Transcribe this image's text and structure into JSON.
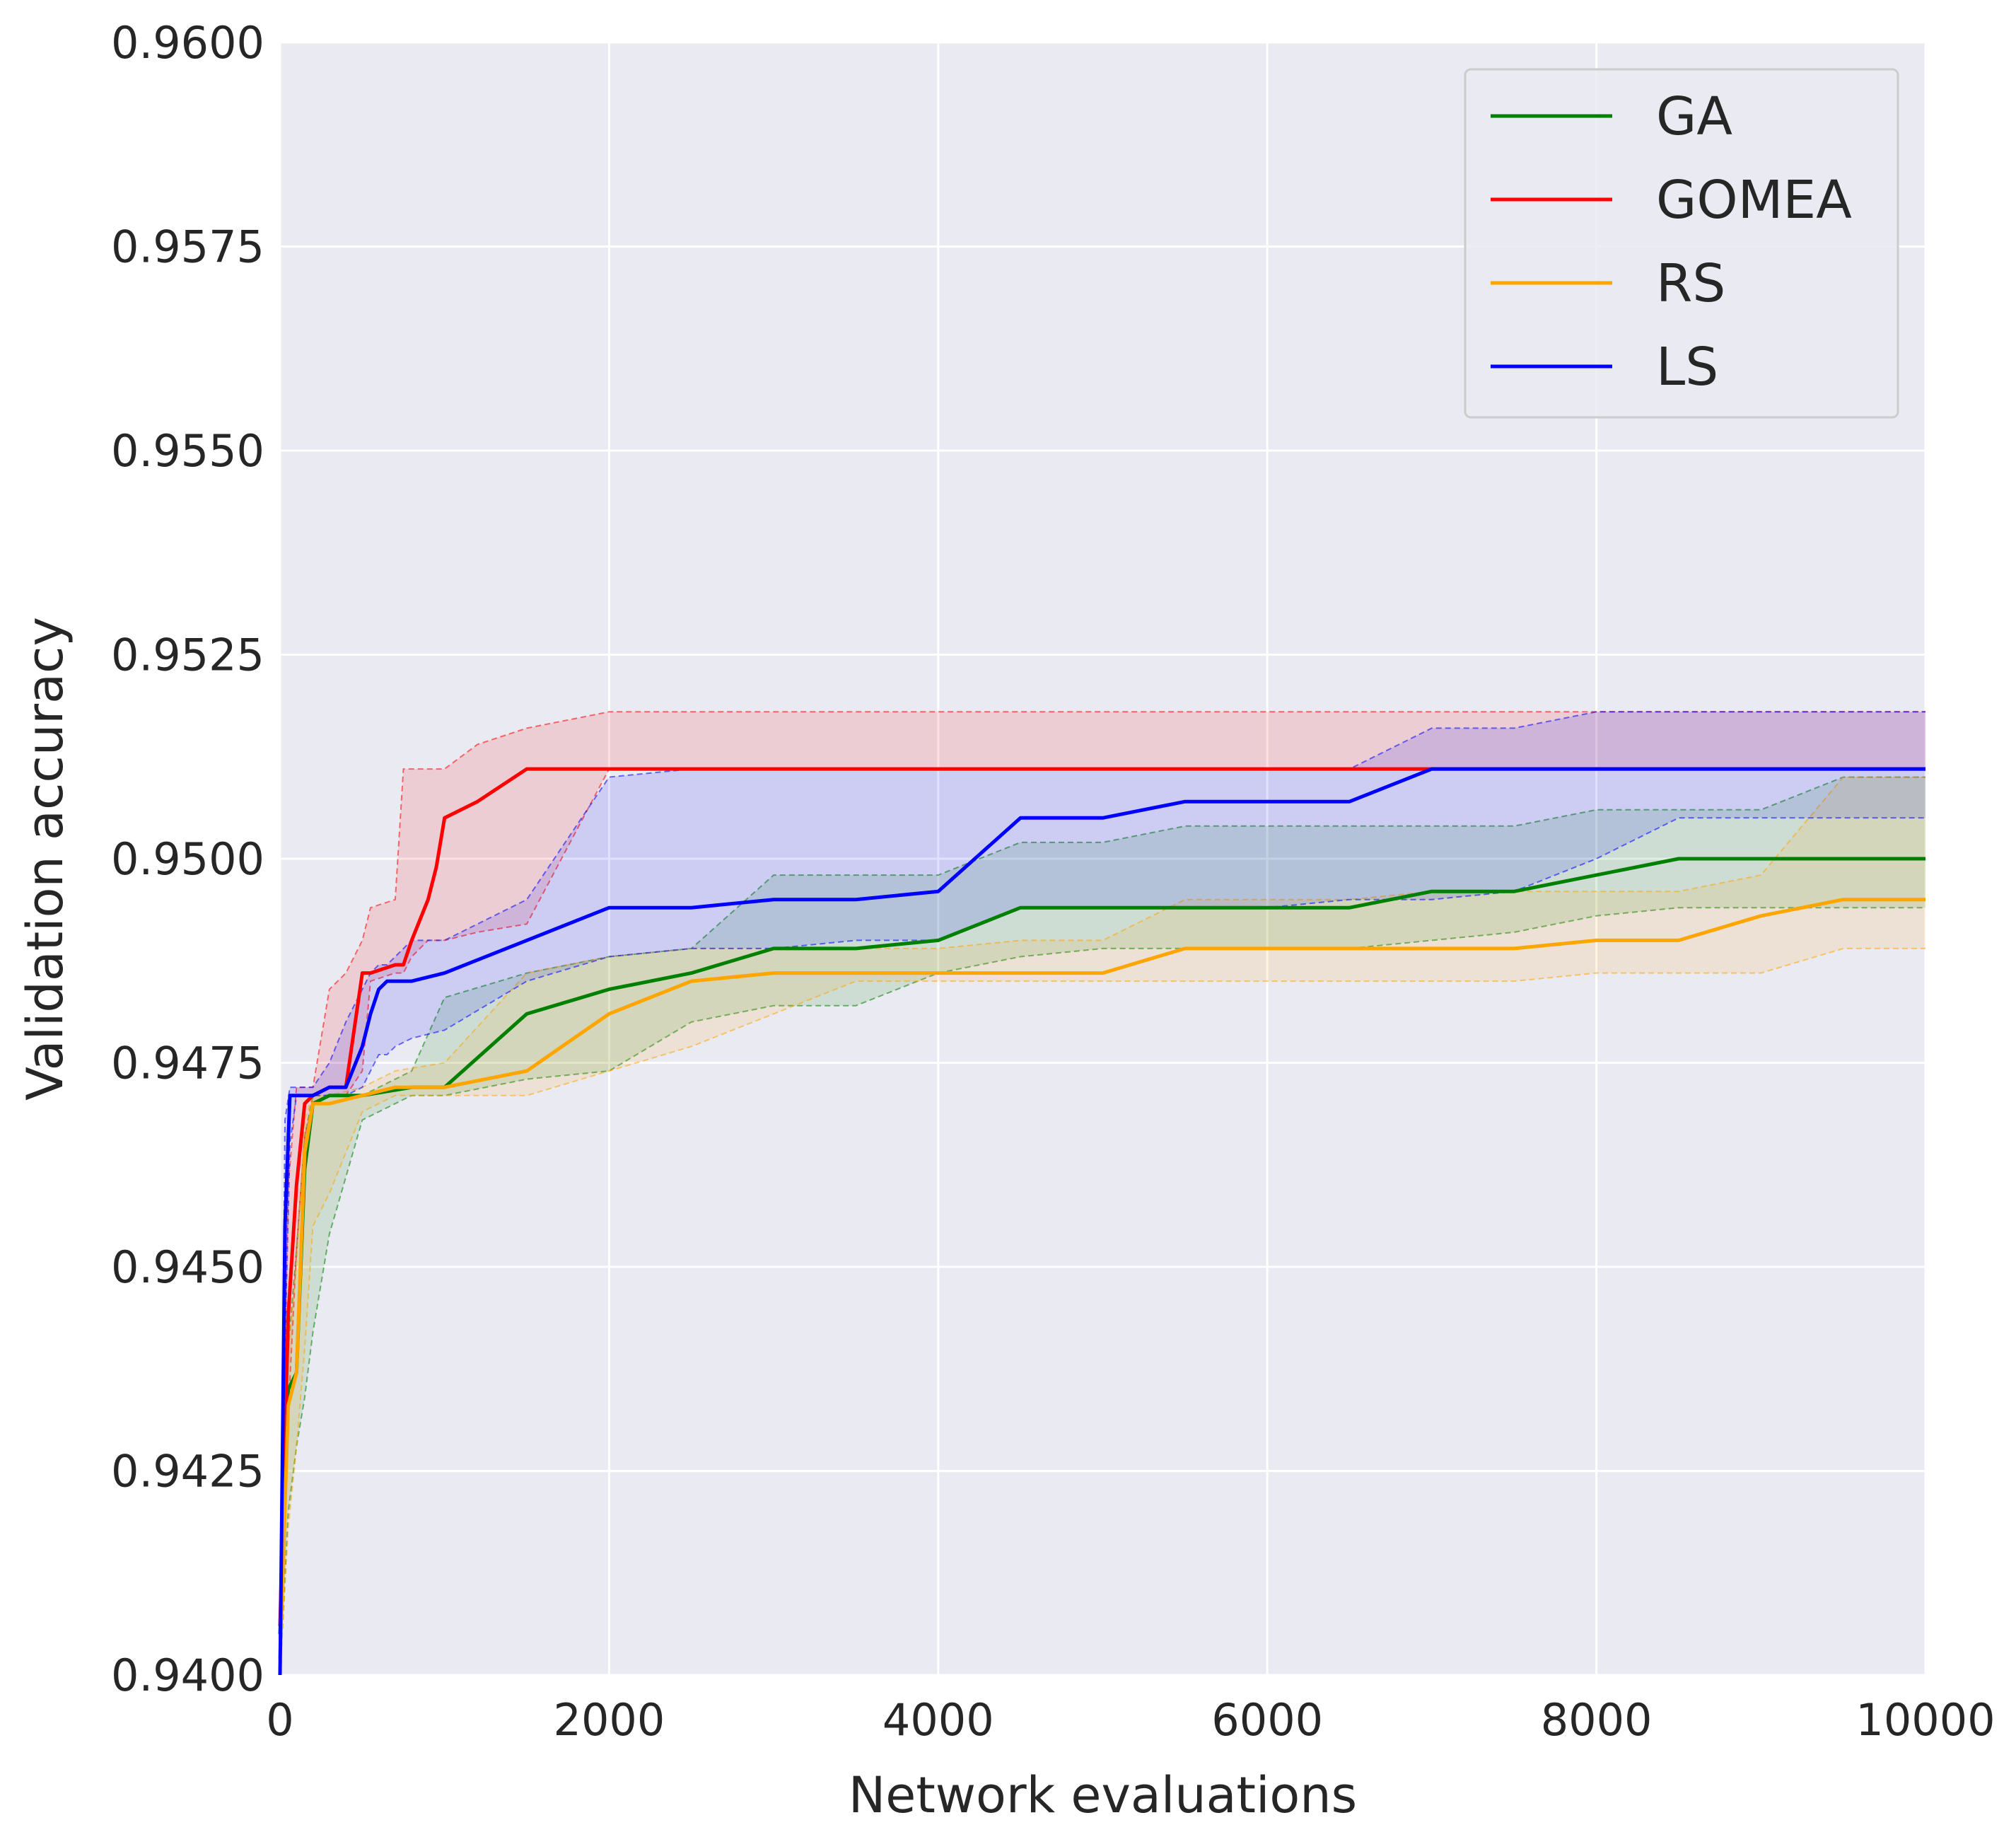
{
  "chart_data": {
    "type": "line",
    "title": "",
    "xlabel": "Network evaluations",
    "ylabel": "Validation accuracy",
    "xlim": [
      0,
      10000
    ],
    "ylim": [
      0.94,
      0.96
    ],
    "xticks": [
      0,
      2000,
      4000,
      6000,
      8000,
      10000
    ],
    "xtick_labels": [
      "0",
      "2000",
      "4000",
      "6000",
      "8000",
      "10000"
    ],
    "yticks": [
      0.94,
      0.9425,
      0.945,
      0.9475,
      0.95,
      0.9525,
      0.955,
      0.9575,
      0.96
    ],
    "ytick_labels": [
      "0.9400",
      "0.9425",
      "0.9450",
      "0.9475",
      "0.9500",
      "0.9525",
      "0.9550",
      "0.9575",
      "0.9600"
    ],
    "grid": true,
    "legend_position": "top-right",
    "background": "#eaeaf2",
    "series": [
      {
        "name": "GA",
        "color": "#008000",
        "x": [
          0,
          50,
          100,
          150,
          200,
          300,
          500,
          800,
          1000,
          1500,
          2000,
          2500,
          3000,
          3500,
          4000,
          4500,
          5000,
          5500,
          6000,
          6500,
          7000,
          7500,
          8000,
          8500,
          9000,
          9500,
          10000
        ],
        "y": [
          0.9405,
          0.9435,
          0.9437,
          0.9462,
          0.947,
          0.9471,
          0.9471,
          0.9472,
          0.9472,
          0.9481,
          0.9484,
          0.9486,
          0.9489,
          0.9489,
          0.949,
          0.9494,
          0.9494,
          0.9494,
          0.9494,
          0.9494,
          0.9496,
          0.9496,
          0.9498,
          0.95,
          0.95,
          0.95,
          0.95
        ],
        "lower": [
          0.94,
          0.942,
          0.9428,
          0.9434,
          0.9442,
          0.9454,
          0.9468,
          0.9471,
          0.9471,
          0.9473,
          0.9474,
          0.948,
          0.9482,
          0.9482,
          0.9486,
          0.9488,
          0.9489,
          0.9489,
          0.9489,
          0.9489,
          0.949,
          0.9491,
          0.9493,
          0.9494,
          0.9494,
          0.9494,
          0.9494
        ],
        "upper": [
          0.9405,
          0.944,
          0.9452,
          0.9466,
          0.9471,
          0.9471,
          0.9471,
          0.9474,
          0.9483,
          0.9486,
          0.9488,
          0.9489,
          0.9498,
          0.9498,
          0.9498,
          0.9502,
          0.9502,
          0.9504,
          0.9504,
          0.9504,
          0.9504,
          0.9504,
          0.9506,
          0.9506,
          0.9506,
          0.951,
          0.951
        ]
      },
      {
        "name": "GOMEA",
        "color": "#ff0000",
        "x": [
          0,
          50,
          100,
          150,
          200,
          300,
          400,
          500,
          550,
          700,
          750,
          800,
          900,
          950,
          1000,
          1200,
          1500,
          2000,
          2500,
          3000,
          3500,
          4000,
          4500,
          5000,
          5500,
          6000,
          6500,
          7000,
          7500,
          8000,
          8500,
          9000,
          9500,
          10000
        ],
        "y": [
          0.9406,
          0.9444,
          0.946,
          0.947,
          0.9471,
          0.9472,
          0.9472,
          0.9486,
          0.9486,
          0.9487,
          0.9487,
          0.949,
          0.9495,
          0.9499,
          0.9505,
          0.9507,
          0.9511,
          0.9511,
          0.9511,
          0.9511,
          0.9511,
          0.9511,
          0.9511,
          0.9511,
          0.9511,
          0.9511,
          0.9511,
          0.9511,
          0.9511,
          0.9511,
          0.9511,
          0.9511,
          0.9511,
          0.9511
        ],
        "lower": [
          0.94,
          0.9432,
          0.9452,
          0.9466,
          0.947,
          0.9471,
          0.9471,
          0.9474,
          0.9485,
          0.9486,
          0.9486,
          0.9488,
          0.949,
          0.949,
          0.949,
          0.9491,
          0.9492,
          0.9511,
          0.9511,
          0.9511,
          0.9511,
          0.9511,
          0.9511,
          0.9511,
          0.9511,
          0.9511,
          0.9511,
          0.9511,
          0.9511,
          0.9511,
          0.9511,
          0.9511,
          0.9511,
          0.9511
        ],
        "upper": [
          0.9406,
          0.946,
          0.9472,
          0.9472,
          0.9472,
          0.9484,
          0.9486,
          0.949,
          0.9494,
          0.9495,
          0.9511,
          0.9511,
          0.9511,
          0.9511,
          0.9511,
          0.9514,
          0.9516,
          0.9518,
          0.9518,
          0.9518,
          0.9518,
          0.9518,
          0.9518,
          0.9518,
          0.9518,
          0.9518,
          0.9518,
          0.9518,
          0.9518,
          0.9518,
          0.9518,
          0.9518,
          0.9518,
          0.9518
        ]
      },
      {
        "name": "RS",
        "color": "#ffa500",
        "x": [
          0,
          50,
          100,
          150,
          200,
          300,
          500,
          700,
          1000,
          1500,
          2000,
          2500,
          3000,
          3500,
          4000,
          4500,
          5000,
          5500,
          6000,
          6500,
          7000,
          7500,
          8000,
          8500,
          9000,
          9500,
          10000
        ],
        "y": [
          0.9402,
          0.9433,
          0.9437,
          0.9464,
          0.947,
          0.947,
          0.9471,
          0.9472,
          0.9472,
          0.9474,
          0.9481,
          0.9485,
          0.9486,
          0.9486,
          0.9486,
          0.9486,
          0.9486,
          0.9489,
          0.9489,
          0.9489,
          0.9489,
          0.9489,
          0.949,
          0.949,
          0.9493,
          0.9495,
          0.9495
        ],
        "lower": [
          0.94,
          0.9418,
          0.9428,
          0.944,
          0.9455,
          0.9459,
          0.9469,
          0.9471,
          0.9471,
          0.9471,
          0.9474,
          0.9477,
          0.9481,
          0.9485,
          0.9485,
          0.9485,
          0.9485,
          0.9485,
          0.9485,
          0.9485,
          0.9485,
          0.9485,
          0.9486,
          0.9486,
          0.9486,
          0.9489,
          0.9489
        ],
        "upper": [
          0.9404,
          0.944,
          0.945,
          0.9468,
          0.9471,
          0.9471,
          0.9472,
          0.9474,
          0.9475,
          0.9486,
          0.9488,
          0.9489,
          0.9489,
          0.9489,
          0.9489,
          0.949,
          0.949,
          0.9495,
          0.9495,
          0.9495,
          0.9496,
          0.9496,
          0.9496,
          0.9496,
          0.9498,
          0.951,
          0.951
        ]
      },
      {
        "name": "LS",
        "color": "#0000ff",
        "x": [
          0,
          30,
          60,
          100,
          200,
          300,
          400,
          500,
          550,
          600,
          650,
          700,
          800,
          1000,
          1500,
          2000,
          2500,
          3000,
          3500,
          4000,
          4500,
          5000,
          5500,
          6000,
          6500,
          7000,
          7500,
          8000,
          8500,
          9000,
          9500,
          10000
        ],
        "y": [
          0.94,
          0.9455,
          0.9471,
          0.9471,
          0.9471,
          0.9472,
          0.9472,
          0.9477,
          0.9481,
          0.9484,
          0.9485,
          0.9485,
          0.9485,
          0.9486,
          0.949,
          0.9494,
          0.9494,
          0.9495,
          0.9495,
          0.9496,
          0.9505,
          0.9505,
          0.9507,
          0.9507,
          0.9507,
          0.9511,
          0.9511,
          0.9511,
          0.9511,
          0.9511,
          0.9511,
          0.9511
        ],
        "lower": [
          0.94,
          0.944,
          0.9465,
          0.9471,
          0.9471,
          0.9471,
          0.9471,
          0.9472,
          0.9474,
          0.9476,
          0.9476,
          0.9477,
          0.9478,
          0.9479,
          0.9485,
          0.9488,
          0.9489,
          0.9489,
          0.949,
          0.949,
          0.9494,
          0.9494,
          0.9494,
          0.9494,
          0.9495,
          0.9495,
          0.9496,
          0.95,
          0.9505,
          0.9505,
          0.9505,
          0.9505
        ],
        "upper": [
          0.94,
          0.9468,
          0.9472,
          0.9472,
          0.9472,
          0.9475,
          0.948,
          0.9484,
          0.9486,
          0.9487,
          0.9487,
          0.9488,
          0.949,
          0.949,
          0.9495,
          0.951,
          0.9511,
          0.9511,
          0.9511,
          0.9511,
          0.9511,
          0.9511,
          0.9511,
          0.9511,
          0.9511,
          0.9516,
          0.9516,
          0.9518,
          0.9518,
          0.9518,
          0.9518,
          0.9518
        ]
      }
    ]
  }
}
